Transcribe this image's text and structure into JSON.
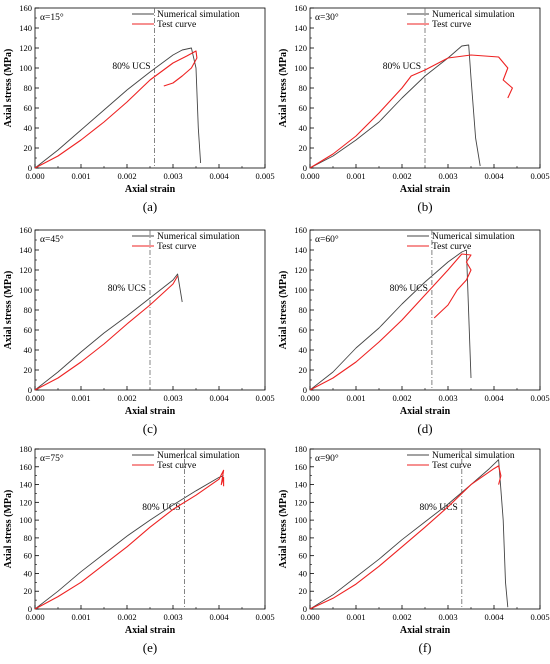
{
  "colors": {
    "simulation": "#444444",
    "test": "#ee2222",
    "ucs_line": "#666666",
    "axis": "#000000"
  },
  "chart_data": [
    {
      "type": "line",
      "panel_label": "(a)",
      "annotation": "α=15°",
      "ucs_label": "80% UCS",
      "ucs_strain": 0.0026,
      "xlabel": "Axial strain",
      "ylabel": "Axial stress (MPa)",
      "xlim": [
        0,
        0.005
      ],
      "ylim": [
        0,
        160
      ],
      "xticks": [
        "0.000",
        "0.001",
        "0.002",
        "0.003",
        "0.004",
        "0.005"
      ],
      "yticks": [
        "0",
        "20",
        "40",
        "60",
        "80",
        "100",
        "120",
        "140",
        "160"
      ],
      "legend_position": "top-right",
      "series": [
        {
          "name": "Numerical simulation",
          "x": [
            0,
            0.0005,
            0.001,
            0.0015,
            0.002,
            0.0025,
            0.003,
            0.0032,
            0.0034,
            0.0035,
            0.00355,
            0.0036
          ],
          "y": [
            0,
            18,
            38,
            58,
            78,
            96,
            113,
            118,
            120,
            100,
            40,
            5
          ]
        },
        {
          "name": "Test curve",
          "x": [
            0,
            0.0005,
            0.001,
            0.0015,
            0.002,
            0.0025,
            0.003,
            0.0033,
            0.0035,
            0.00352,
            0.0034,
            0.0032,
            0.003,
            0.0028
          ],
          "y": [
            0,
            12,
            28,
            46,
            66,
            88,
            105,
            112,
            117,
            110,
            100,
            92,
            85,
            82
          ]
        }
      ]
    },
    {
      "type": "line",
      "panel_label": "(b)",
      "annotation": "α=30°",
      "ucs_label": "80% UCS",
      "ucs_strain": 0.0025,
      "xlabel": "Axial strain",
      "ylabel": "Axial stress (MPa)",
      "xlim": [
        0,
        0.005
      ],
      "ylim": [
        0,
        160
      ],
      "xticks": [
        "0.000",
        "0.001",
        "0.002",
        "0.003",
        "0.004",
        "0.005"
      ],
      "yticks": [
        "0",
        "20",
        "40",
        "60",
        "80",
        "100",
        "120",
        "140",
        "160"
      ],
      "legend_position": "top-right",
      "series": [
        {
          "name": "Numerical simulation",
          "x": [
            0,
            0.0005,
            0.001,
            0.0015,
            0.002,
            0.0025,
            0.003,
            0.0033,
            0.00345,
            0.0035,
            0.0036,
            0.0037
          ],
          "y": [
            0,
            12,
            28,
            46,
            70,
            92,
            110,
            122,
            123,
            90,
            30,
            2
          ]
        },
        {
          "name": "Test curve",
          "x": [
            0,
            0.0005,
            0.001,
            0.0015,
            0.002,
            0.0022,
            0.0025,
            0.003,
            0.0035,
            0.0038,
            0.0041,
            0.0043,
            0.0042,
            0.0044,
            0.0043
          ],
          "y": [
            0,
            14,
            32,
            55,
            80,
            92,
            98,
            110,
            113,
            112,
            111,
            100,
            88,
            80,
            70
          ]
        }
      ]
    },
    {
      "type": "line",
      "panel_label": "(c)",
      "annotation": "α=45°",
      "ucs_label": "80% UCS",
      "ucs_strain": 0.0025,
      "xlabel": "Axial strain",
      "ylabel": "Axial stress (MPa)",
      "xlim": [
        0,
        0.005
      ],
      "ylim": [
        0,
        160
      ],
      "xticks": [
        "0.000",
        "0.001",
        "0.002",
        "0.003",
        "0.004",
        "0.005"
      ],
      "yticks": [
        "0",
        "20",
        "40",
        "60",
        "80",
        "100",
        "120",
        "140",
        "160"
      ],
      "legend_position": "top-right",
      "series": [
        {
          "name": "Numerical simulation",
          "x": [
            0,
            0.0005,
            0.001,
            0.0015,
            0.002,
            0.0025,
            0.003,
            0.0031,
            0.0032
          ],
          "y": [
            0,
            18,
            38,
            57,
            74,
            92,
            110,
            116,
            88
          ]
        },
        {
          "name": "Test curve",
          "x": [
            0,
            0.0005,
            0.001,
            0.0015,
            0.002,
            0.0025,
            0.003,
            0.0031
          ],
          "y": [
            0,
            12,
            28,
            46,
            66,
            85,
            106,
            114
          ]
        }
      ]
    },
    {
      "type": "line",
      "panel_label": "(d)",
      "annotation": "α=60°",
      "ucs_label": "80% UCS",
      "ucs_strain": 0.00265,
      "xlabel": "Axial strain",
      "ylabel": "Axial stress (MPa)",
      "xlim": [
        0,
        0.005
      ],
      "ylim": [
        0,
        160
      ],
      "xticks": [
        "0.000",
        "0.001",
        "0.002",
        "0.003",
        "0.004",
        "0.005"
      ],
      "yticks": [
        "0",
        "20",
        "40",
        "60",
        "80",
        "100",
        "120",
        "140",
        "160"
      ],
      "legend_position": "top-right",
      "series": [
        {
          "name": "Numerical simulation",
          "x": [
            0,
            0.0005,
            0.001,
            0.0015,
            0.002,
            0.0025,
            0.003,
            0.0033,
            0.0034,
            0.0035
          ],
          "y": [
            0,
            18,
            42,
            62,
            86,
            108,
            128,
            138,
            140,
            12
          ]
        },
        {
          "name": "Test curve",
          "x": [
            0,
            0.0005,
            0.001,
            0.0015,
            0.002,
            0.0025,
            0.003,
            0.0033,
            0.0035,
            0.0034,
            0.0035,
            0.0034,
            0.0032,
            0.003,
            0.0027
          ],
          "y": [
            0,
            12,
            28,
            48,
            70,
            95,
            120,
            136,
            135,
            128,
            120,
            110,
            100,
            85,
            72
          ]
        }
      ]
    },
    {
      "type": "line",
      "panel_label": "(e)",
      "annotation": "α=75°",
      "ucs_label": "80% UCS",
      "ucs_strain": 0.00325,
      "xlabel": "Axial strain",
      "ylabel": "Axial stress (MPa)",
      "xlim": [
        0,
        0.005
      ],
      "ylim": [
        0,
        180
      ],
      "xticks": [
        "0.000",
        "0.001",
        "0.002",
        "0.003",
        "0.004",
        "0.005"
      ],
      "yticks": [
        "0",
        "20",
        "40",
        "60",
        "80",
        "100",
        "120",
        "140",
        "160",
        "180"
      ],
      "legend_position": "top-right",
      "series": [
        {
          "name": "Numerical simulation",
          "x": [
            0,
            0.0005,
            0.001,
            0.0015,
            0.002,
            0.0025,
            0.003,
            0.0035,
            0.004,
            0.0041
          ],
          "y": [
            0,
            20,
            42,
            62,
            82,
            100,
            117,
            133,
            148,
            150
          ]
        },
        {
          "name": "Test curve",
          "x": [
            0,
            0.0005,
            0.001,
            0.0015,
            0.002,
            0.0025,
            0.003,
            0.0035,
            0.004,
            0.0041,
            0.00405,
            0.0041,
            0.0041
          ],
          "y": [
            0,
            14,
            30,
            50,
            70,
            92,
            112,
            128,
            146,
            156,
            140,
            148,
            138
          ]
        }
      ]
    },
    {
      "type": "line",
      "panel_label": "(f)",
      "annotation": "α=90°",
      "ucs_label": "80% UCS",
      "ucs_strain": 0.0033,
      "xlabel": "Axial strain",
      "ylabel": "Axial stress (MPa)",
      "xlim": [
        0,
        0.005
      ],
      "ylim": [
        0,
        180
      ],
      "xticks": [
        "0.000",
        "0.001",
        "0.002",
        "0.003",
        "0.004",
        "0.005"
      ],
      "yticks": [
        "0",
        "20",
        "40",
        "60",
        "80",
        "100",
        "120",
        "140",
        "160",
        "180"
      ],
      "legend_position": "top-right",
      "series": [
        {
          "name": "Numerical simulation",
          "x": [
            0,
            0.0005,
            0.001,
            0.0015,
            0.002,
            0.0025,
            0.003,
            0.0035,
            0.0039,
            0.0041,
            0.0042,
            0.00425,
            0.0043
          ],
          "y": [
            0,
            16,
            36,
            56,
            78,
            98,
            118,
            140,
            158,
            168,
            100,
            30,
            2
          ]
        },
        {
          "name": "Test curve",
          "x": [
            0,
            0.0005,
            0.001,
            0.0015,
            0.002,
            0.0025,
            0.003,
            0.0035,
            0.004,
            0.0041,
            0.00415,
            0.0041
          ],
          "y": [
            0,
            12,
            28,
            48,
            70,
            92,
            115,
            140,
            158,
            161,
            150,
            140
          ]
        }
      ]
    }
  ]
}
